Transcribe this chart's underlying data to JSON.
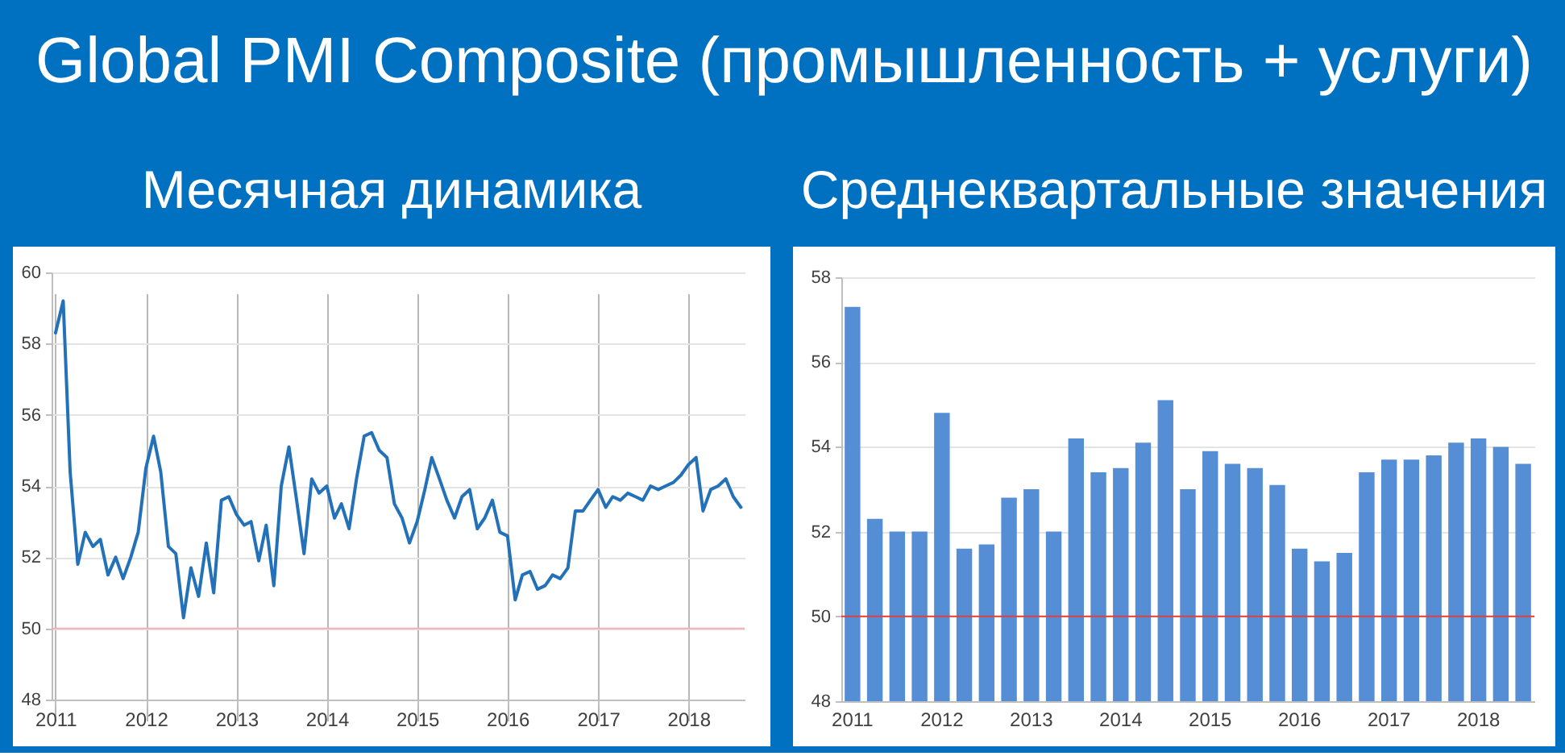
{
  "chart_data": [
    {
      "type": "line",
      "title": "Global PMI Composite (промышленность + услуги)",
      "subtitle": "Месячная динамика",
      "x": [
        "2011-01",
        "2011-02",
        "2011-03",
        "2011-04",
        "2011-05",
        "2011-06",
        "2011-07",
        "2011-08",
        "2011-09",
        "2011-10",
        "2011-11",
        "2011-12",
        "2012-01",
        "2012-02",
        "2012-03",
        "2012-04",
        "2012-05",
        "2012-06",
        "2012-07",
        "2012-08",
        "2012-09",
        "2012-10",
        "2012-11",
        "2012-12",
        "2013-01",
        "2013-02",
        "2013-03",
        "2013-04",
        "2013-05",
        "2013-06",
        "2013-07",
        "2013-08",
        "2013-09",
        "2013-10",
        "2013-11",
        "2013-12",
        "2014-01",
        "2014-02",
        "2014-03",
        "2014-04",
        "2014-05",
        "2014-06",
        "2014-07",
        "2014-08",
        "2014-09",
        "2014-10",
        "2014-11",
        "2014-12",
        "2015-01",
        "2015-02",
        "2015-03",
        "2015-04",
        "2015-05",
        "2015-06",
        "2015-07",
        "2015-08",
        "2015-09",
        "2015-10",
        "2015-11",
        "2015-12",
        "2016-01",
        "2016-02",
        "2016-03",
        "2016-04",
        "2016-05",
        "2016-06",
        "2016-07",
        "2016-08",
        "2016-09",
        "2016-10",
        "2016-11",
        "2016-12",
        "2017-01",
        "2017-02",
        "2017-03",
        "2017-04",
        "2017-05",
        "2017-06",
        "2017-07",
        "2017-08",
        "2017-09",
        "2017-10",
        "2017-11",
        "2017-12",
        "2018-01",
        "2018-02",
        "2018-03",
        "2018-04",
        "2018-05",
        "2018-06",
        "2018-07",
        "2018-08"
      ],
      "series": [
        {
          "color": "#2372b9",
          "values": [
            58.3,
            59.2,
            54.4,
            51.8,
            52.7,
            52.3,
            52.5,
            51.5,
            52.0,
            51.4,
            52.0,
            52.7,
            54.5,
            55.4,
            54.4,
            52.3,
            52.1,
            50.3,
            51.7,
            50.9,
            52.4,
            51.0,
            53.6,
            53.7,
            53.2,
            52.9,
            53.0,
            51.9,
            52.9,
            51.2,
            54.0,
            55.1,
            53.6,
            52.1,
            54.2,
            53.8,
            54.0,
            53.1,
            53.5,
            52.8,
            54.2,
            55.4,
            55.5,
            55.0,
            54.8,
            53.5,
            53.1,
            52.4,
            53.0,
            53.9,
            54.8,
            54.2,
            53.6,
            53.1,
            53.7,
            53.9,
            52.8,
            53.1,
            53.6,
            52.7,
            52.6,
            50.8,
            51.5,
            51.6,
            51.1,
            51.2,
            51.5,
            51.4,
            51.7,
            53.3,
            53.3,
            53.6,
            53.9,
            53.4,
            53.7,
            53.6,
            53.8,
            53.7,
            53.6,
            54.0,
            53.9,
            54.0,
            54.1,
            54.3,
            54.6,
            54.8,
            53.3,
            53.9,
            54.0,
            54.2,
            53.7,
            53.4
          ]
        }
      ],
      "xlim": [
        "2010-12-16",
        "2018-08-16"
      ],
      "xticks": [
        "2011",
        "2012",
        "2013",
        "2014",
        "2015",
        "2016",
        "2017",
        "2018"
      ],
      "ylim": [
        48,
        60
      ],
      "yticks": [
        48,
        50,
        52,
        54,
        56,
        58,
        60
      ],
      "grid": true,
      "ref_lines": [
        {
          "axis": "y",
          "value": 50,
          "color": "#f4b0b0"
        }
      ]
    },
    {
      "type": "bar",
      "title": "Среднеквартальные значения",
      "categories": [
        "2011",
        null,
        null,
        null,
        "2012",
        null,
        null,
        null,
        "2013",
        null,
        null,
        null,
        "2014",
        null,
        null,
        null,
        "2015",
        null,
        null,
        null,
        "2016",
        null,
        null,
        null,
        "2017",
        null,
        null,
        null,
        "2018",
        null,
        null
      ],
      "values": [
        57.3,
        52.3,
        52.0,
        52.0,
        54.8,
        51.6,
        51.7,
        52.8,
        53.0,
        52.0,
        54.2,
        53.4,
        53.5,
        54.1,
        55.1,
        53.0,
        53.9,
        53.6,
        53.5,
        53.1,
        51.6,
        51.3,
        51.5,
        53.4,
        53.7,
        53.7,
        53.8,
        54.1,
        54.2,
        54.0,
        53.6
      ],
      "color": "#558ed5",
      "ylim": [
        48,
        58
      ],
      "yticks": [
        48,
        50,
        52,
        54,
        56,
        58
      ],
      "grid": "y",
      "ref_lines": [
        {
          "axis": "y",
          "value": 50,
          "color": "#e0413c"
        }
      ]
    }
  ]
}
